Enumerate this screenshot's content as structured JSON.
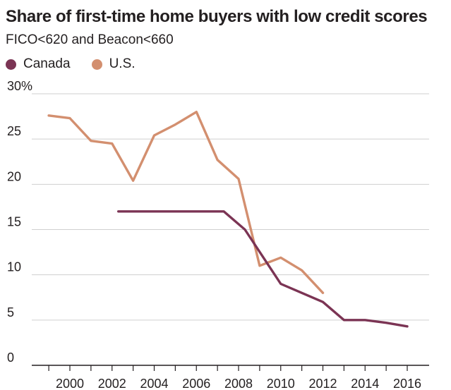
{
  "chart_data": {
    "type": "line",
    "title": "Share of first-time home buyers with low credit scores",
    "subtitle": "FICO<620 and Beacon<660",
    "xlabel": "",
    "ylabel": "",
    "ylim": [
      0,
      30
    ],
    "y_ticks": [
      {
        "value": 30,
        "label": "30%"
      },
      {
        "value": 25,
        "label": "25"
      },
      {
        "value": 20,
        "label": "20"
      },
      {
        "value": 15,
        "label": "15"
      },
      {
        "value": 10,
        "label": "10"
      },
      {
        "value": 5,
        "label": "5"
      },
      {
        "value": 0,
        "label": "0"
      }
    ],
    "x_ticks": [
      "2000",
      "2002",
      "2004",
      "2006",
      "2008",
      "2010",
      "2012",
      "2014",
      "2016"
    ],
    "grid": "horizontal",
    "legend_position": "top-left",
    "series": [
      {
        "name": "Canada",
        "color": "#7b3454",
        "x": [
          2002.3,
          2007.3,
          2008.3,
          2010.0,
          2011.0,
          2012.0,
          2013.0,
          2014.0,
          2015.0,
          2016.0
        ],
        "y": [
          17.0,
          17.0,
          15.0,
          9.0,
          8.0,
          7.0,
          5.0,
          5.0,
          4.7,
          4.3
        ]
      },
      {
        "name": "U.S.",
        "color": "#d38f6f",
        "x": [
          1999.0,
          2000.0,
          2001.0,
          2002.0,
          2003.0,
          2004.0,
          2005.0,
          2006.0,
          2007.0,
          2008.0,
          2009.0,
          2010.0,
          2011.0,
          2012.0
        ],
        "y": [
          27.6,
          27.3,
          24.8,
          24.5,
          20.4,
          25.4,
          26.6,
          28.0,
          22.7,
          20.6,
          11.0,
          11.9,
          10.5,
          8.0
        ]
      }
    ]
  }
}
